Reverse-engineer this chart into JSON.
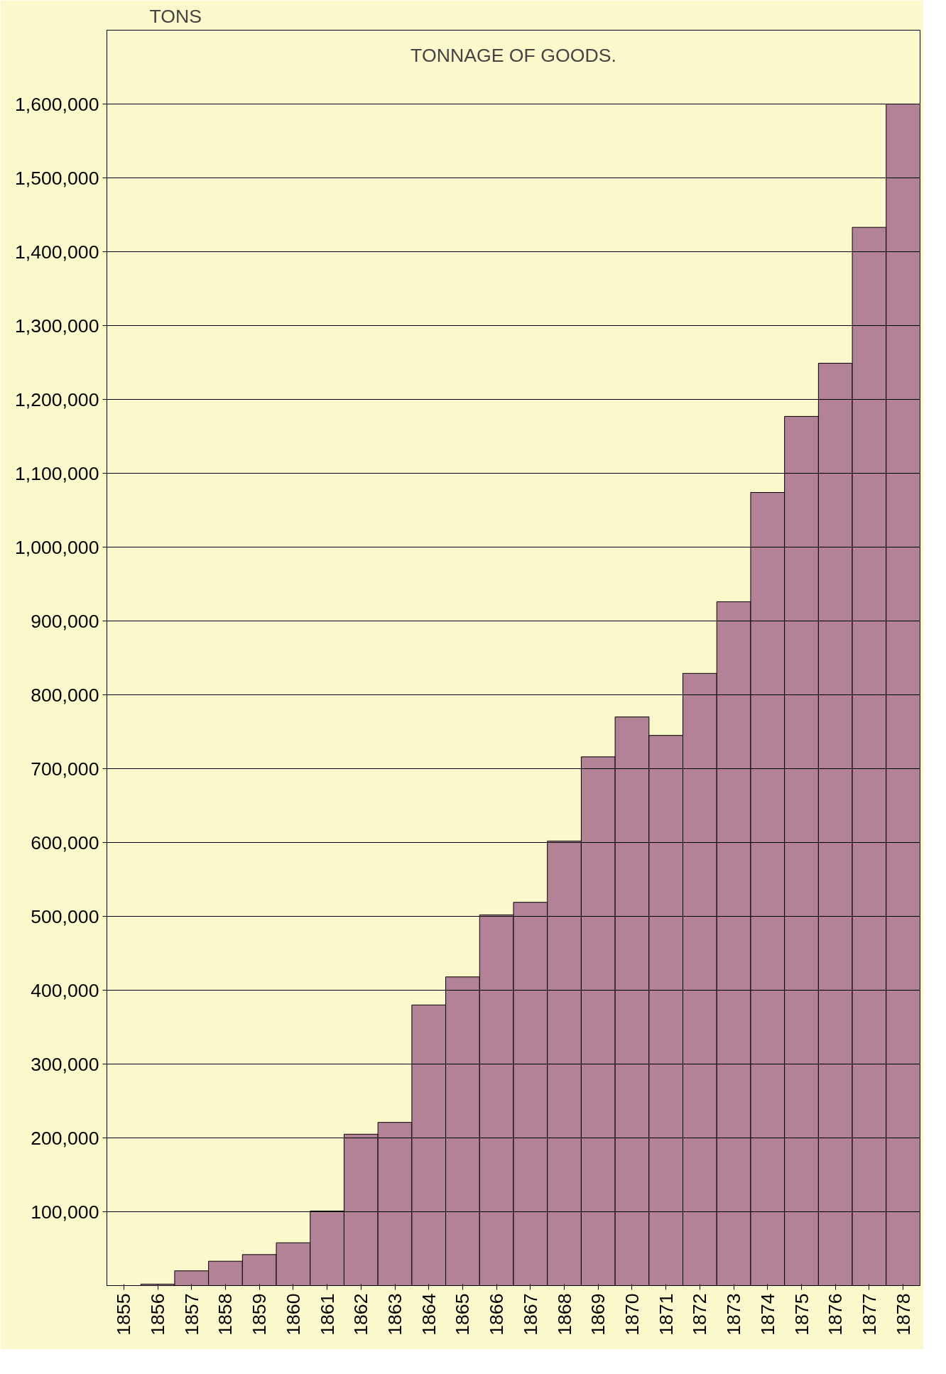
{
  "chart_data": {
    "type": "bar",
    "title": "TONNAGE OF GOODS.",
    "ylabel": "TONS",
    "categories": [
      "1855",
      "1856",
      "1857",
      "1858",
      "1859",
      "1860",
      "1861",
      "1862",
      "1863",
      "1864",
      "1865",
      "1866",
      "1867",
      "1868",
      "1869",
      "1870",
      "1871",
      "1872",
      "1873",
      "1874",
      "1875",
      "1876",
      "1877",
      "1878"
    ],
    "values": [
      null,
      2000,
      20000,
      33000,
      42000,
      58000,
      101000,
      205000,
      221000,
      380000,
      418000,
      502000,
      519000,
      602000,
      716000,
      770000,
      745000,
      829000,
      926000,
      1074000,
      1177000,
      1249000,
      1433000,
      1600000
    ],
    "color": "#b38297",
    "ylim": [
      0,
      1700000
    ],
    "yticks": [
      {
        "value": 100000,
        "label": "100,000"
      },
      {
        "value": 200000,
        "label": "200,000"
      },
      {
        "value": 300000,
        "label": "300,000"
      },
      {
        "value": 400000,
        "label": "400,000"
      },
      {
        "value": 500000,
        "label": "500,000"
      },
      {
        "value": 600000,
        "label": "600,000"
      },
      {
        "value": 700000,
        "label": "700,000"
      },
      {
        "value": 800000,
        "label": "800,000"
      },
      {
        "value": 900000,
        "label": "900,000"
      },
      {
        "value": 1000000,
        "label": "1,000,000"
      },
      {
        "value": 1100000,
        "label": "1,100,000"
      },
      {
        "value": 1200000,
        "label": "1,200,000"
      },
      {
        "value": 1300000,
        "label": "1,300,000"
      },
      {
        "value": 1400000,
        "label": "1,400,000"
      },
      {
        "value": 1500000,
        "label": "1,500,000"
      },
      {
        "value": 1600000,
        "label": "1,600,000"
      }
    ],
    "grid": "y"
  }
}
